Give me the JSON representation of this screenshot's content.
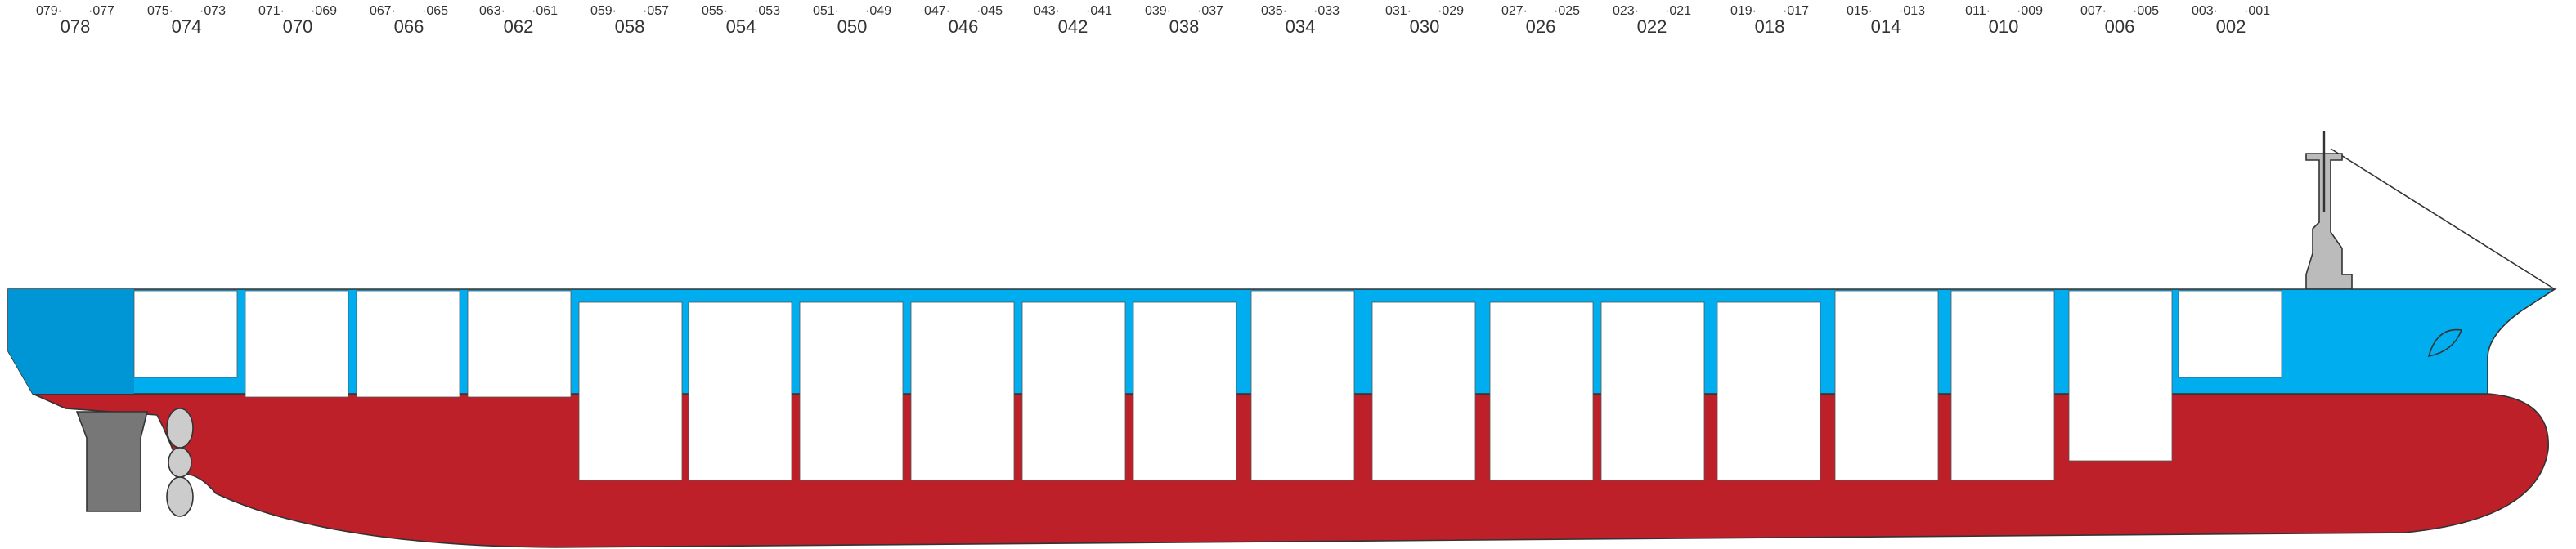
{
  "bays": [
    {
      "aft": "079·",
      "fore": "·077",
      "label": "078"
    },
    {
      "aft": "075·",
      "fore": "·073",
      "label": "074"
    },
    {
      "aft": "071·",
      "fore": "·069",
      "label": "070"
    },
    {
      "aft": "067·",
      "fore": "·065",
      "label": "066"
    },
    {
      "aft": "063·",
      "fore": "·061",
      "label": "062"
    },
    {
      "aft": "059·",
      "fore": "·057",
      "label": "058"
    },
    {
      "aft": "055·",
      "fore": "·053",
      "label": "054"
    },
    {
      "aft": "051·",
      "fore": "·049",
      "label": "050"
    },
    {
      "aft": "047·",
      "fore": "·045",
      "label": "046"
    },
    {
      "aft": "043·",
      "fore": "·041",
      "label": "042"
    },
    {
      "aft": "039·",
      "fore": "·037",
      "label": "038"
    },
    {
      "aft": "035·",
      "fore": "·033",
      "label": "034"
    },
    {
      "aft": "031·",
      "fore": "·029",
      "label": "030"
    },
    {
      "aft": "027·",
      "fore": "·025",
      "label": "026"
    },
    {
      "aft": "023·",
      "fore": "·021",
      "label": "022"
    },
    {
      "aft": "019·",
      "fore": "·017",
      "label": "018"
    },
    {
      "aft": "015·",
      "fore": "·013",
      "label": "014"
    },
    {
      "aft": "011·",
      "fore": "·009",
      "label": "010"
    },
    {
      "aft": "007·",
      "fore": "·005",
      "label": "006"
    },
    {
      "aft": "003·",
      "fore": "·001",
      "label": "002"
    }
  ]
}
